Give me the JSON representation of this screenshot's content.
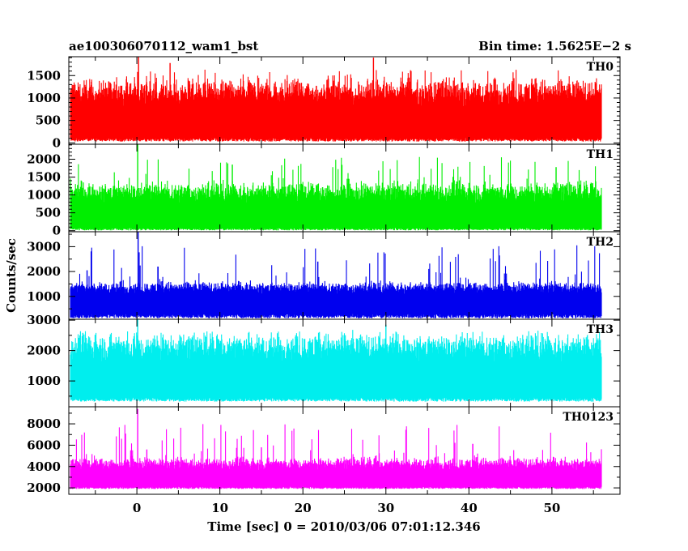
{
  "header": {
    "title_left": "ae100306070112_wam1_bst",
    "title_right": "Bin time: 1.5625E−2 s"
  },
  "chart_data": {
    "type": "line",
    "title": "ae100306070112_wam1_bst",
    "subtitle": "Bin time: 1.5625E−2 s",
    "xlabel": "Time [sec] 0 = 2010/03/06 07:01:12.346",
    "ylabel": "Counts/sec",
    "xlim": [
      -8.2,
      58.2
    ],
    "xticks": [
      0,
      10,
      20,
      30,
      40,
      50
    ],
    "data_xrange": [
      -8,
      56
    ],
    "bin_time": 0.015625,
    "grid": false,
    "panels": [
      {
        "name": "TH0",
        "color": "#ff0000",
        "ylim": [
          -30,
          1920
        ],
        "yticks": [
          0,
          500,
          1000,
          1500
        ],
        "baseline": 30,
        "mean": 720,
        "band_low": 260,
        "band_high": 1250,
        "max_peak": 1930,
        "spikes": [
          {
            "x": 0.2,
            "y": 1930
          },
          {
            "x": 28.5,
            "y": 1900
          },
          {
            "x": 4.0,
            "y": 1780
          }
        ]
      },
      {
        "name": "TH1",
        "color": "#00ee00",
        "ylim": [
          -30,
          2420
        ],
        "yticks": [
          0,
          500,
          1000,
          1500,
          2000
        ],
        "baseline": 10,
        "mean": 640,
        "band_low": 200,
        "band_high": 1200,
        "max_peak": 2430,
        "spikes": [
          {
            "x": 0.1,
            "y": 2430
          },
          {
            "x": 11.5,
            "y": 1850
          },
          {
            "x": 50.5,
            "y": 1780
          }
        ]
      },
      {
        "name": "TH2",
        "color": "#0000ee",
        "ylim": [
          80,
          3600
        ],
        "yticks": [
          1000,
          2000,
          3000
        ],
        "baseline": 120,
        "mean": 960,
        "band_low": 620,
        "band_high": 1450,
        "max_peak": 3600,
        "spikes": [
          {
            "x": 0.15,
            "y": 3600
          },
          {
            "x": 21.8,
            "y": 2400
          },
          {
            "x": -6.0,
            "y": 2050
          }
        ]
      },
      {
        "name": "TH3",
        "color": "#00eeee",
        "ylim": [
          150,
          3030
        ],
        "yticks": [
          1000,
          2000,
          3000
        ],
        "baseline": 320,
        "mean": 1440,
        "band_low": 700,
        "band_high": 2300,
        "max_peak": 3100,
        "spikes": [
          {
            "x": 0.1,
            "y": 3100
          },
          {
            "x": 30.0,
            "y": 2850
          }
        ]
      },
      {
        "name": "TH0123",
        "color": "#ff00ff",
        "ylim": [
          1400,
          9600
        ],
        "yticks": [
          2000,
          4000,
          6000,
          8000
        ],
        "baseline": 1900,
        "mean": 3400,
        "band_low": 2500,
        "band_high": 4500,
        "max_peak": 9400,
        "spikes": [
          {
            "x": 0.1,
            "y": 9400
          },
          {
            "x": 15.0,
            "y": 5800
          },
          {
            "x": 1.2,
            "y": 5600
          }
        ]
      }
    ]
  }
}
